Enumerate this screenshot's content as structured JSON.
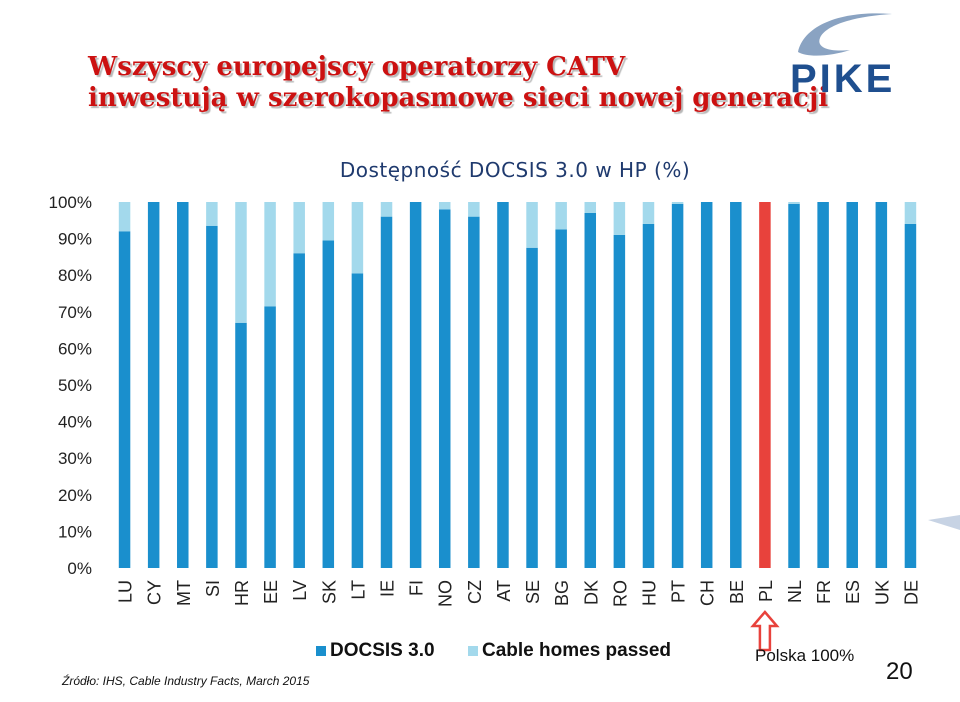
{
  "slide": {
    "title_line1": "Wszyscy europejscy operatorzy CATV",
    "title_line2": "inwestują w szerokopasmowe sieci nowej generacji",
    "logo_text": "PIKE",
    "source": "Źródło: IHS, Cable Industry Facts, March 2015",
    "page_number": "20",
    "annotation": "Polska 100%"
  },
  "colors": {
    "docsis": "#1a8fcd",
    "cable": "#a3d9ec",
    "highlight": "#e8423c",
    "title": "#cc1111",
    "chart_title": "#1f3a6e",
    "logo": "#1f4f8f"
  },
  "chart_data": {
    "type": "bar",
    "stacked": true,
    "title": "Dostępność DOCSIS 3.0 w HP (%)",
    "categories": [
      "LU",
      "CY",
      "MT",
      "SI",
      "HR",
      "EE",
      "LV",
      "SK",
      "LT",
      "IE",
      "FI",
      "NO",
      "CZ",
      "AT",
      "SE",
      "BG",
      "DK",
      "RO",
      "HU",
      "PT",
      "CH",
      "BE",
      "PL",
      "NL",
      "FR",
      "ES",
      "UK",
      "DE"
    ],
    "series": [
      {
        "name": "DOCSIS 3.0",
        "values": [
          92,
          100,
          100,
          93.5,
          67,
          71.5,
          86,
          89.5,
          80.5,
          96,
          100,
          98,
          96,
          100,
          87.5,
          92.5,
          97,
          91,
          94,
          99.5,
          100,
          100,
          100,
          99.5,
          100,
          100,
          100,
          94
        ]
      },
      {
        "name": "Cable homes passed",
        "values": [
          8,
          0,
          0,
          6.5,
          33,
          28.5,
          14,
          10.5,
          19.5,
          4,
          0,
          2,
          4,
          0,
          12.5,
          7.5,
          3,
          9,
          6,
          0.5,
          0,
          0,
          0,
          0.5,
          0,
          0,
          0,
          6
        ]
      }
    ],
    "highlight_category": "PL",
    "ylim": [
      0,
      100
    ],
    "yticks": [
      "0%",
      "10%",
      "20%",
      "30%",
      "40%",
      "50%",
      "60%",
      "70%",
      "80%",
      "90%",
      "100%"
    ],
    "legend_position": "bottom",
    "grid": false
  }
}
